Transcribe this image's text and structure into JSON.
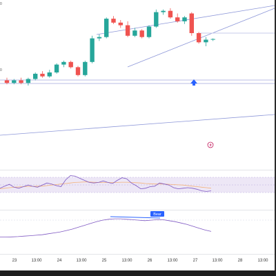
{
  "header": {
    "top_label": "0",
    "left_label": "0"
  },
  "time_axis": {
    "ticks": [
      "23",
      "13:00",
      "24",
      "13:00",
      "25",
      "13:00",
      "26",
      "13:00",
      "27",
      "13:00",
      "28",
      "13:00"
    ]
  },
  "annotations": {
    "bear_label": "Bear"
  },
  "icons": {
    "arrow": "up-arrow-icon",
    "flash": "flash-icon"
  },
  "colors": {
    "bull": "#26a69a",
    "bear": "#ef5350",
    "trendline": "#8c96d8",
    "support": "#c7cbeb",
    "rsi_line": "#7e57c2",
    "rsi_ma": "#f4b27a",
    "rsi_band": "#ede7f6",
    "marker": "#2962ff",
    "flash": "#c2185b"
  },
  "chart_data": [
    {
      "type": "candlestick",
      "title": "",
      "xlabel": "",
      "ylabel": "",
      "ylim": [
        0,
        100
      ],
      "candles": [
        {
          "o": 44,
          "h": 46,
          "l": 41,
          "c": 42
        },
        {
          "o": 42,
          "h": 45,
          "l": 41,
          "c": 44
        },
        {
          "o": 44,
          "h": 46,
          "l": 41,
          "c": 42
        },
        {
          "o": 42,
          "h": 46,
          "l": 40,
          "c": 45
        },
        {
          "o": 45,
          "h": 50,
          "l": 44,
          "c": 49
        },
        {
          "o": 49,
          "h": 51,
          "l": 46,
          "c": 47
        },
        {
          "o": 47,
          "h": 52,
          "l": 46,
          "c": 50
        },
        {
          "o": 50,
          "h": 57,
          "l": 49,
          "c": 56
        },
        {
          "o": 56,
          "h": 59,
          "l": 54,
          "c": 58
        },
        {
          "o": 58,
          "h": 59,
          "l": 53,
          "c": 54
        },
        {
          "o": 54,
          "h": 55,
          "l": 47,
          "c": 48
        },
        {
          "o": 48,
          "h": 59,
          "l": 47,
          "c": 58
        },
        {
          "o": 58,
          "h": 78,
          "l": 57,
          "c": 76
        },
        {
          "o": 76,
          "h": 79,
          "l": 74,
          "c": 77
        },
        {
          "o": 77,
          "h": 92,
          "l": 76,
          "c": 91
        },
        {
          "o": 91,
          "h": 93,
          "l": 87,
          "c": 88
        },
        {
          "o": 88,
          "h": 90,
          "l": 84,
          "c": 86
        },
        {
          "o": 86,
          "h": 89,
          "l": 77,
          "c": 78
        },
        {
          "o": 78,
          "h": 84,
          "l": 77,
          "c": 82
        },
        {
          "o": 82,
          "h": 83,
          "l": 76,
          "c": 77
        },
        {
          "o": 77,
          "h": 86,
          "l": 76,
          "c": 85
        },
        {
          "o": 85,
          "h": 98,
          "l": 84,
          "c": 96
        },
        {
          "o": 96,
          "h": 98,
          "l": 94,
          "c": 97
        },
        {
          "o": 97,
          "h": 99,
          "l": 91,
          "c": 92
        },
        {
          "o": 92,
          "h": 95,
          "l": 88,
          "c": 89
        },
        {
          "o": 89,
          "h": 93,
          "l": 87,
          "c": 92
        },
        {
          "o": 95,
          "h": 96,
          "l": 78,
          "c": 80
        },
        {
          "o": 80,
          "h": 81,
          "l": 72,
          "c": 73
        },
        {
          "o": 73,
          "h": 77,
          "l": 70,
          "c": 75
        },
        {
          "o": 75,
          "h": 76,
          "l": 74,
          "c": 75.5
        }
      ]
    },
    {
      "type": "line",
      "title": "",
      "ylim": [
        0,
        100
      ],
      "series": [
        {
          "values": [
            40,
            48,
            55,
            44,
            40,
            46,
            52,
            47,
            44,
            52,
            60,
            56,
            50,
            46,
            72,
            88,
            86,
            78,
            70,
            62,
            60,
            62,
            68,
            62,
            58,
            70,
            80,
            76,
            60,
            50,
            38,
            40,
            46,
            48,
            60,
            56,
            52,
            42,
            38,
            40,
            42,
            40,
            36,
            30,
            28,
            30
          ]
        },
        {
          "values": [
            38,
            40,
            42,
            44,
            45,
            46,
            47,
            47,
            48,
            48,
            50,
            52,
            54,
            56,
            58,
            60,
            62,
            63,
            64,
            64,
            63,
            62,
            62,
            62,
            62,
            62,
            63,
            63,
            62,
            61,
            60,
            58,
            57,
            56,
            56,
            56,
            55,
            54,
            53,
            52,
            50,
            48,
            46,
            44,
            42,
            40
          ]
        }
      ]
    },
    {
      "type": "line",
      "title": "",
      "ylim": [
        0,
        100
      ],
      "series": [
        {
          "values": [
            10,
            10,
            11,
            12,
            14,
            16,
            18,
            20,
            24,
            28,
            32,
            38,
            44,
            52,
            60,
            68,
            76,
            82,
            86,
            88,
            88,
            86,
            84,
            82,
            80,
            82,
            84,
            84,
            80,
            76,
            70,
            64,
            56,
            48,
            40,
            34
          ]
        }
      ]
    }
  ]
}
